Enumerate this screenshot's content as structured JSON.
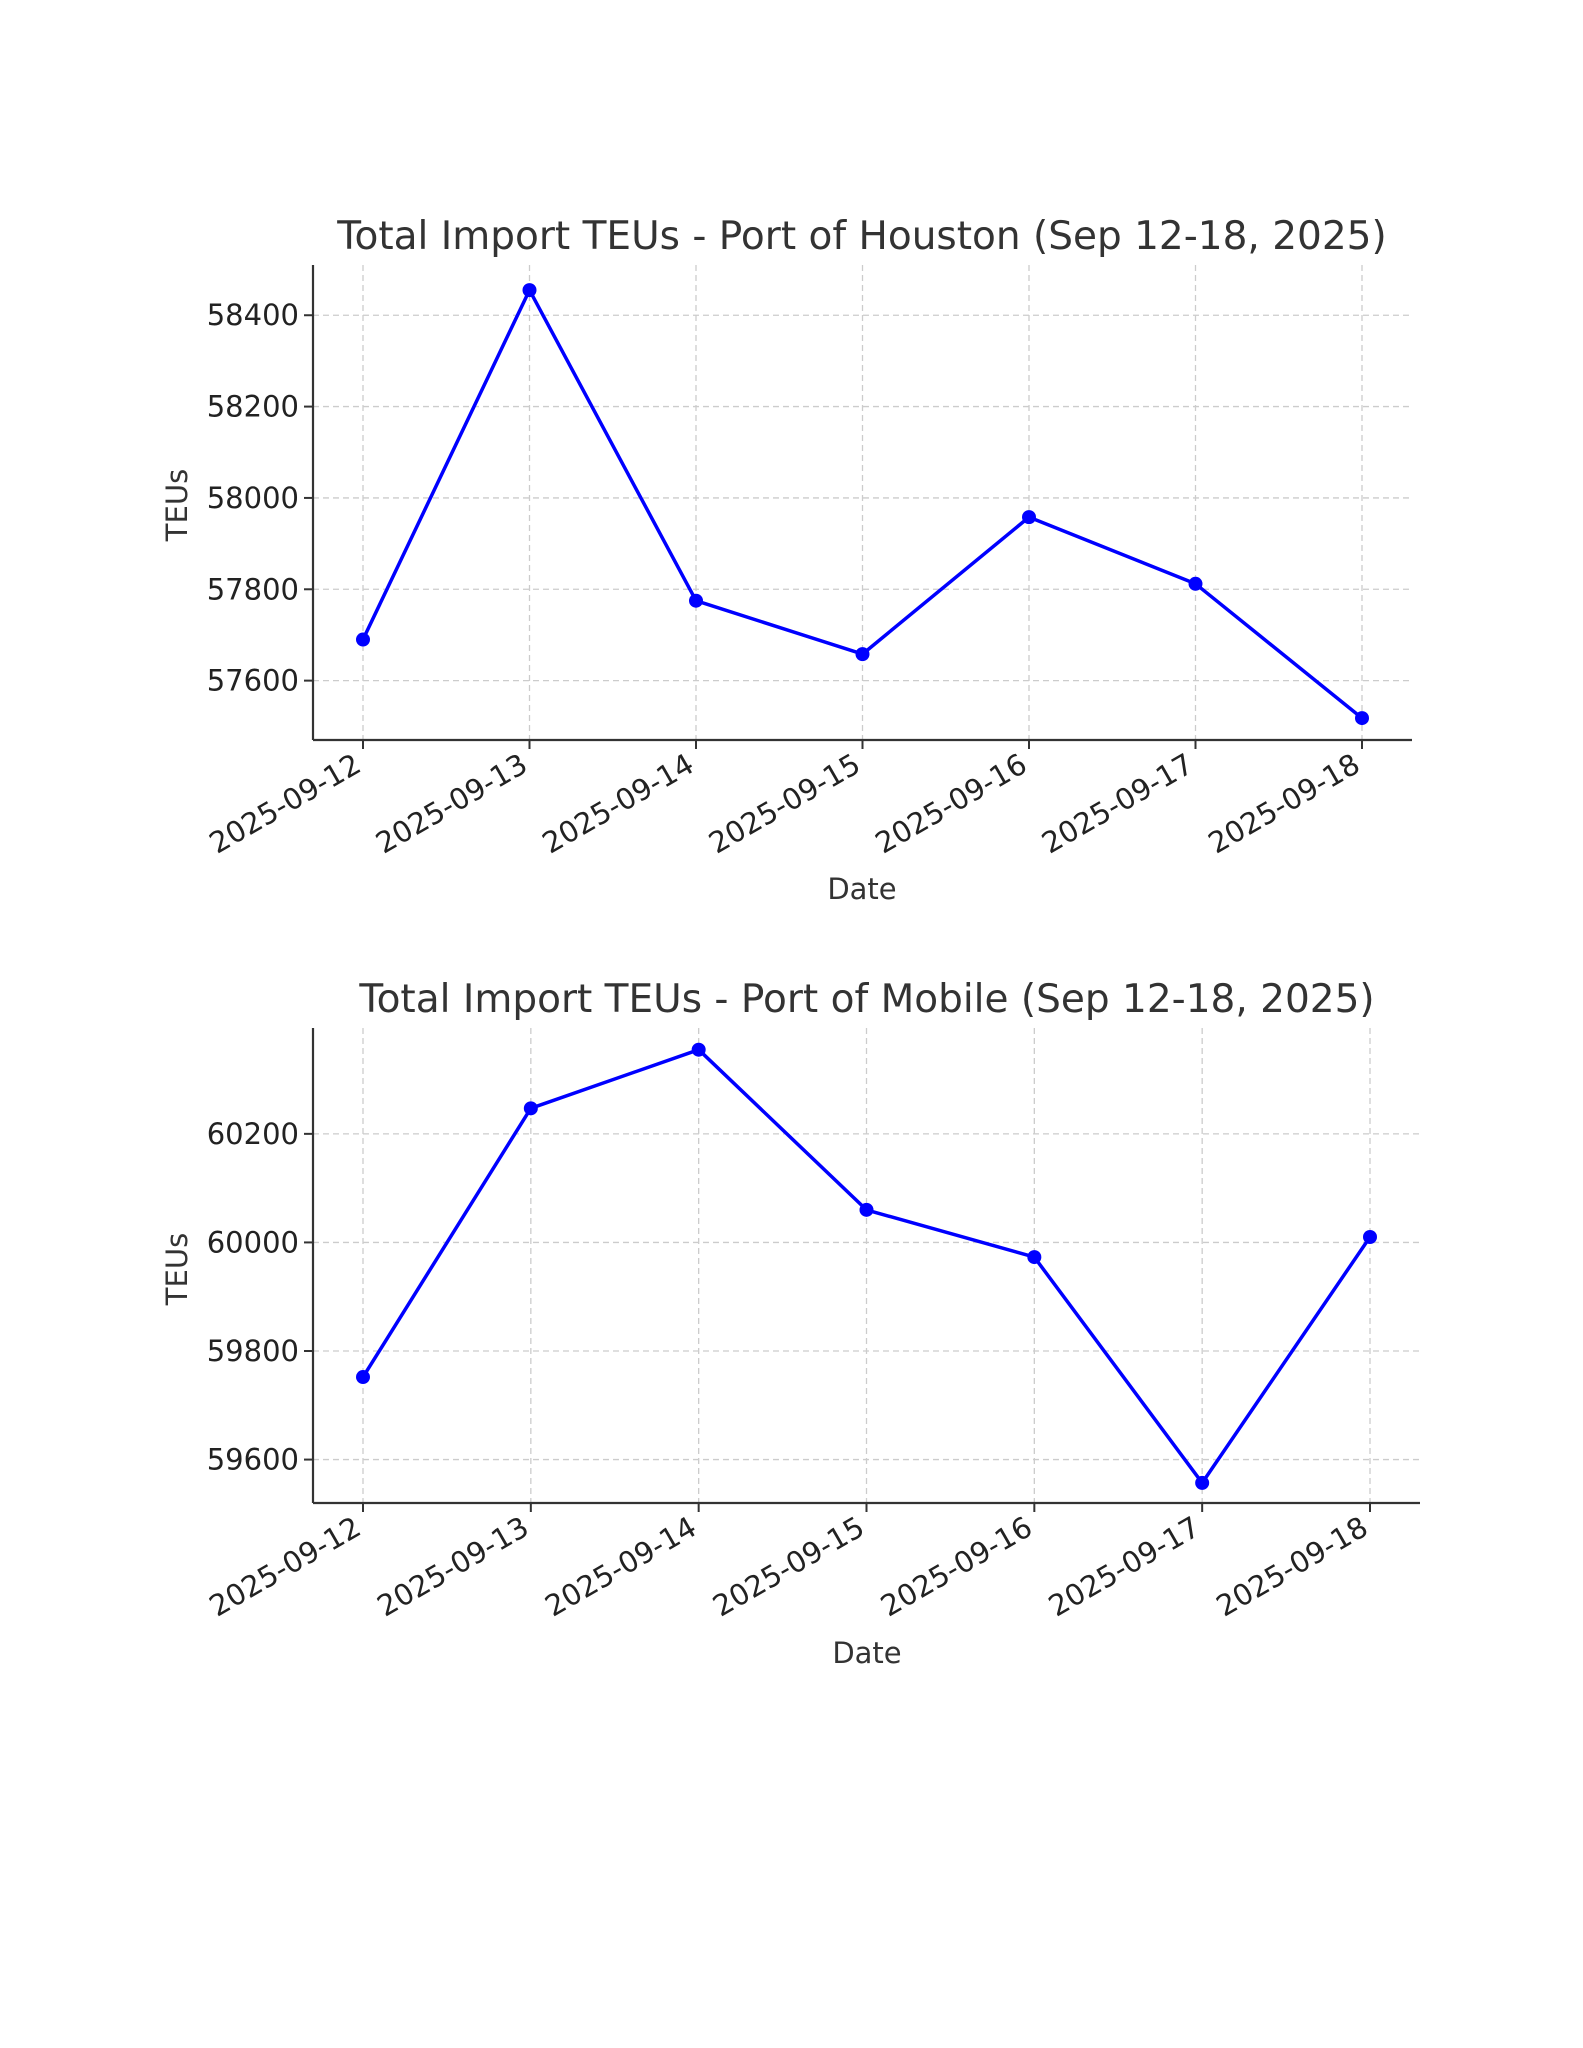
{
  "chart_data": [
    {
      "type": "line",
      "title": "Total Import TEUs - Port of Houston (Sep 12-18, 2025)",
      "xlabel": "Date",
      "ylabel": "TEUs",
      "x": [
        "2025-09-12",
        "2025-09-13",
        "2025-09-14",
        "2025-09-15",
        "2025-09-16",
        "2025-09-17",
        "2025-09-18"
      ],
      "y_ticks": [
        57600,
        57800,
        58000,
        58200,
        58400
      ],
      "ylim": [
        57470,
        58510
      ],
      "grid": true,
      "series": [
        {
          "values": [
            57690,
            58455,
            57775,
            57658,
            57958,
            57812,
            57518
          ],
          "color": "#0000ff"
        }
      ]
    },
    {
      "type": "line",
      "title": "Total Import TEUs - Port of Mobile (Sep 12-18, 2025)",
      "xlabel": "Date",
      "ylabel": "TEUs",
      "x": [
        "2025-09-12",
        "2025-09-13",
        "2025-09-14",
        "2025-09-15",
        "2025-09-16",
        "2025-09-17",
        "2025-09-18"
      ],
      "y_ticks": [
        59600,
        59800,
        60000,
        60200
      ],
      "ylim": [
        59520,
        60395
      ],
      "grid": true,
      "series": [
        {
          "values": [
            59752,
            60247,
            60355,
            60060,
            59973,
            59557,
            60010
          ],
          "color": "#0000ff"
        }
      ]
    }
  ]
}
